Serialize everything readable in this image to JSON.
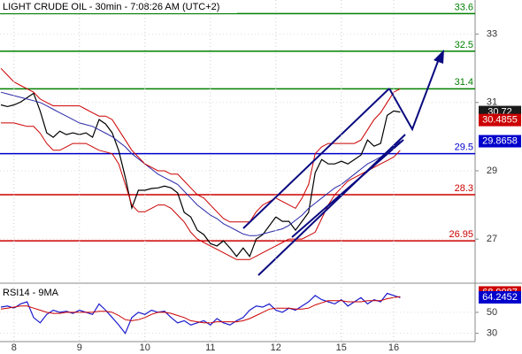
{
  "chart_data": [
    {
      "type": "line",
      "title": "LIGHT CRUDE OIL - 30min - 7:08:26 AM (UTC+2)",
      "categories": [
        null,
        null,
        "8",
        null,
        null,
        null,
        null,
        null,
        null,
        null,
        null,
        null,
        "9",
        null,
        null,
        null,
        null,
        null,
        null,
        null,
        null,
        null,
        "10",
        null,
        null,
        null,
        null,
        null,
        null,
        null,
        null,
        null,
        "11",
        null,
        null,
        null,
        null,
        null,
        null,
        null,
        null,
        null,
        "12",
        null,
        null,
        null,
        null,
        null,
        null,
        null,
        null,
        null,
        "15",
        null,
        null,
        null,
        null,
        null,
        null,
        null,
        "16",
        null
      ],
      "series": [
        {
          "name": "Price",
          "color": "#000000",
          "values": [
            30.93,
            30.88,
            30.93,
            31.01,
            31.14,
            31.27,
            30.75,
            30.11,
            29.98,
            30.16,
            30.06,
            30.11,
            30.06,
            30.11,
            29.98,
            30.5,
            30.37,
            30.11,
            29.59,
            28.81,
            27.91,
            28.43,
            28.43,
            28.48,
            28.5,
            28.55,
            28.5,
            28.35,
            27.78,
            27.65,
            27.26,
            27.13,
            26.87,
            26.8,
            26.95,
            26.74,
            26.49,
            26.74,
            26.49,
            27.0,
            27.13,
            27.39,
            27.65,
            27.52,
            27.52,
            27.26,
            27.52,
            27.78,
            28.94,
            29.33,
            29.2,
            29.2,
            29.28,
            29.2,
            29.33,
            29.46,
            29.9,
            29.72,
            29.8,
            30.62,
            30.75,
            30.72
          ]
        },
        {
          "name": "MA",
          "color": "#2a2aa8",
          "values": [
            31.3,
            31.25,
            31.2,
            31.15,
            31.1,
            31.05,
            31.0,
            30.9,
            30.8,
            30.7,
            30.6,
            30.5,
            30.4,
            30.35,
            30.3,
            30.2,
            30.1,
            30.0,
            29.85,
            29.7,
            29.5,
            29.35,
            29.2,
            29.05,
            28.9,
            28.8,
            28.7,
            28.6,
            28.4,
            28.2,
            28.0,
            27.85,
            27.7,
            27.6,
            27.45,
            27.35,
            27.25,
            27.15,
            27.1,
            27.1,
            27.15,
            27.2,
            27.25,
            27.3,
            27.4,
            27.55,
            27.7,
            27.9,
            28.05,
            28.2,
            28.35,
            28.5,
            28.6,
            28.75,
            28.9,
            29.05,
            29.2,
            29.3,
            29.4,
            29.55,
            29.7,
            29.8658
          ]
        },
        {
          "name": "Upper band",
          "color": "#cc0000",
          "values": [
            32.0,
            31.8,
            31.6,
            31.5,
            31.4,
            31.3,
            31.1,
            31.0,
            30.9,
            30.9,
            30.9,
            30.9,
            30.9,
            30.8,
            30.7,
            30.6,
            30.6,
            30.5,
            30.2,
            29.9,
            29.6,
            29.4,
            29.2,
            29.1,
            29.0,
            29.0,
            28.9,
            28.9,
            28.7,
            28.5,
            28.3,
            28.2,
            28.0,
            27.8,
            27.6,
            27.5,
            27.5,
            27.5,
            27.5,
            27.8,
            28.0,
            28.1,
            28.2,
            28.1,
            28.0,
            27.9,
            28.2,
            28.6,
            29.5,
            29.7,
            29.8,
            29.8,
            29.8,
            29.8,
            29.8,
            29.9,
            30.2,
            30.5,
            30.7,
            31.0,
            31.3,
            31.4
          ]
        },
        {
          "name": "Lower band",
          "color": "#cc0000",
          "values": [
            30.4,
            30.4,
            30.4,
            30.35,
            30.3,
            30.3,
            30.1,
            29.8,
            29.6,
            29.6,
            29.7,
            29.8,
            29.8,
            29.8,
            29.7,
            29.6,
            29.55,
            29.5,
            29.2,
            28.6,
            28.0,
            27.8,
            27.8,
            27.9,
            28.0,
            28.0,
            27.9,
            27.7,
            27.5,
            27.2,
            27.0,
            26.9,
            26.8,
            26.7,
            26.6,
            26.5,
            26.4,
            26.4,
            26.4,
            26.5,
            26.6,
            26.7,
            26.8,
            26.9,
            27.0,
            27.0,
            27.0,
            27.1,
            27.2,
            27.6,
            28.0,
            28.3,
            28.5,
            28.7,
            28.8,
            28.9,
            29.0,
            29.1,
            29.2,
            29.3,
            29.4,
            29.6
          ]
        }
      ],
      "levels": [
        {
          "value": 33.6,
          "color": "#008000"
        },
        {
          "value": 32.5,
          "color": "#008000"
        },
        {
          "value": 31.4,
          "color": "#008000"
        },
        {
          "value": 29.5,
          "color": "#0000cc"
        },
        {
          "value": 28.3,
          "color": "#cc0000"
        },
        {
          "value": 26.95,
          "color": "#cc0000"
        }
      ],
      "price_tags": [
        {
          "value": 30.72,
          "color": "#1a1a1a"
        },
        {
          "value": 30.4855,
          "color": "#cc0000"
        },
        {
          "value": 29.8658,
          "color": "#0000cc"
        }
      ],
      "ylim": [
        25.76,
        34.0
      ],
      "yticks": [
        27,
        29,
        31,
        33
      ],
      "grid": true
    },
    {
      "type": "line",
      "title": "RSI14 - 9MA",
      "series": [
        {
          "name": "RSI14",
          "color": "#1a1acc",
          "values": [
            55,
            56,
            54,
            58,
            60,
            45,
            40,
            48,
            52,
            50,
            51,
            49,
            52,
            50,
            48,
            58,
            52,
            45,
            38,
            30,
            45,
            50,
            48,
            52,
            50,
            51,
            45,
            40,
            42,
            38,
            40,
            42,
            38,
            44,
            40,
            38,
            42,
            45,
            52,
            56,
            55,
            58,
            52,
            50,
            54,
            52,
            56,
            60,
            66,
            62,
            60,
            58,
            62,
            56,
            60,
            64,
            58,
            62,
            60,
            68,
            66,
            64
          ]
        },
        {
          "name": "9MA",
          "color": "#cc0000",
          "values": [
            53,
            54,
            55,
            56,
            56,
            54,
            52,
            50,
            49,
            49,
            50,
            50,
            50,
            50,
            50,
            51,
            51,
            50,
            47,
            43,
            42,
            43,
            45,
            48,
            50,
            50,
            49,
            47,
            45,
            42,
            41,
            40,
            40,
            41,
            41,
            41,
            41,
            42,
            44,
            47,
            50,
            53,
            54,
            54,
            54,
            53,
            53,
            54,
            57,
            59,
            61,
            61,
            61,
            60,
            60,
            60,
            61,
            61,
            61,
            63,
            64,
            65
          ]
        }
      ],
      "price_tags": [
        {
          "value": 68.9087,
          "color": "#cc0000"
        },
        {
          "value": 64.2452,
          "color": "#0000cc"
        }
      ],
      "ylim": [
        23,
        76
      ],
      "yticks": [
        30,
        50
      ],
      "grid": true
    }
  ]
}
